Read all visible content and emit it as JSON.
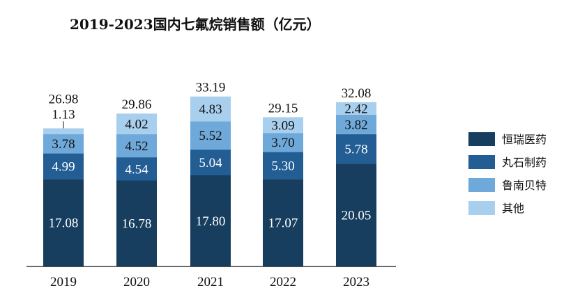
{
  "chart_data": {
    "type": "bar",
    "stacked": true,
    "title": "2019-2023国内七氟烷销售额（亿元）",
    "categories": [
      "2019",
      "2020",
      "2021",
      "2022",
      "2023"
    ],
    "series": [
      {
        "name": "恒瑞医药",
        "color": "#173e5f",
        "values": [
          17.08,
          16.78,
          17.8,
          17.07,
          20.05
        ]
      },
      {
        "name": "丸石制药",
        "color": "#225d94",
        "values": [
          4.99,
          4.54,
          5.04,
          5.3,
          5.78
        ]
      },
      {
        "name": "鲁南贝特",
        "color": "#6fa9da",
        "values": [
          3.78,
          4.52,
          5.52,
          3.7,
          3.82
        ]
      },
      {
        "name": "其他",
        "color": "#a8cfee",
        "values": [
          1.13,
          4.02,
          4.83,
          3.09,
          2.42
        ]
      }
    ],
    "totals": [
      26.98,
      29.86,
      33.19,
      29.15,
      32.08
    ],
    "value_labels": [
      [
        "17.08",
        "4.99",
        "3.78",
        "1.13"
      ],
      [
        "16.78",
        "4.54",
        "4.52",
        "4.02"
      ],
      [
        "17.80",
        "5.04",
        "5.52",
        "4.83"
      ],
      [
        "17.07",
        "5.30",
        "3.70",
        "3.09"
      ],
      [
        "20.05",
        "5.78",
        "3.82",
        "2.42"
      ]
    ],
    "total_labels": [
      "26.98",
      "29.86",
      "33.19",
      "29.15",
      "32.08"
    ],
    "ylim": [
      0,
      36
    ],
    "grid": false,
    "legend_position": "right"
  }
}
